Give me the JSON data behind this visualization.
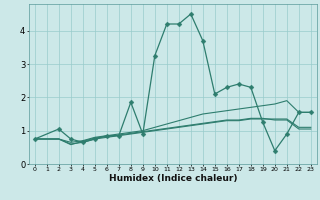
{
  "xlabel": "Humidex (Indice chaleur)",
  "bg_color": "#cce8e8",
  "line_color": "#2e7d6e",
  "grid_color": "#99cccc",
  "xlim": [
    -0.5,
    23.5
  ],
  "ylim": [
    0,
    4.8
  ],
  "xticks": [
    0,
    1,
    2,
    3,
    4,
    5,
    6,
    7,
    8,
    9,
    10,
    11,
    12,
    13,
    14,
    15,
    16,
    17,
    18,
    19,
    20,
    21,
    22,
    23
  ],
  "yticks": [
    0,
    1,
    2,
    3,
    4
  ],
  "series": [
    {
      "x": [
        0,
        2,
        3,
        4,
        5,
        6,
        7,
        8,
        9,
        10,
        11,
        12,
        13,
        14,
        15,
        16,
        17,
        18,
        19,
        20,
        21,
        22,
        23
      ],
      "y": [
        0.75,
        1.05,
        0.75,
        0.65,
        0.75,
        0.85,
        0.85,
        1.85,
        0.9,
        3.25,
        4.2,
        4.2,
        4.5,
        3.7,
        2.1,
        2.3,
        2.4,
        2.3,
        1.25,
        0.4,
        0.9,
        1.55,
        1.55
      ],
      "has_markers": true
    },
    {
      "x": [
        0,
        2,
        3,
        4,
        5,
        6,
        7,
        8,
        9,
        10,
        11,
        12,
        13,
        14,
        15,
        16,
        17,
        18,
        19,
        20,
        21,
        22,
        23
      ],
      "y": [
        0.75,
        0.75,
        0.65,
        0.7,
        0.8,
        0.85,
        0.9,
        0.95,
        1.0,
        1.1,
        1.2,
        1.3,
        1.4,
        1.5,
        1.55,
        1.6,
        1.65,
        1.7,
        1.75,
        1.8,
        1.9,
        1.55,
        1.55
      ],
      "has_markers": false
    },
    {
      "x": [
        0,
        2,
        3,
        4,
        5,
        6,
        7,
        8,
        9,
        10,
        11,
        12,
        13,
        14,
        15,
        16,
        17,
        18,
        19,
        20,
        21,
        22,
        23
      ],
      "y": [
        0.75,
        0.75,
        0.6,
        0.65,
        0.75,
        0.8,
        0.85,
        0.9,
        0.95,
        1.0,
        1.05,
        1.1,
        1.15,
        1.2,
        1.25,
        1.3,
        1.3,
        1.35,
        1.35,
        1.35,
        1.35,
        1.1,
        1.1
      ],
      "has_markers": false
    },
    {
      "x": [
        0,
        2,
        3,
        4,
        5,
        6,
        7,
        8,
        9,
        10,
        11,
        12,
        13,
        14,
        15,
        16,
        17,
        18,
        19,
        20,
        21,
        22,
        23
      ],
      "y": [
        0.75,
        0.75,
        0.58,
        0.68,
        0.78,
        0.82,
        0.87,
        0.92,
        0.97,
        1.02,
        1.07,
        1.12,
        1.17,
        1.22,
        1.27,
        1.32,
        1.32,
        1.37,
        1.37,
        1.32,
        1.32,
        1.05,
        1.05
      ],
      "has_markers": false
    }
  ]
}
